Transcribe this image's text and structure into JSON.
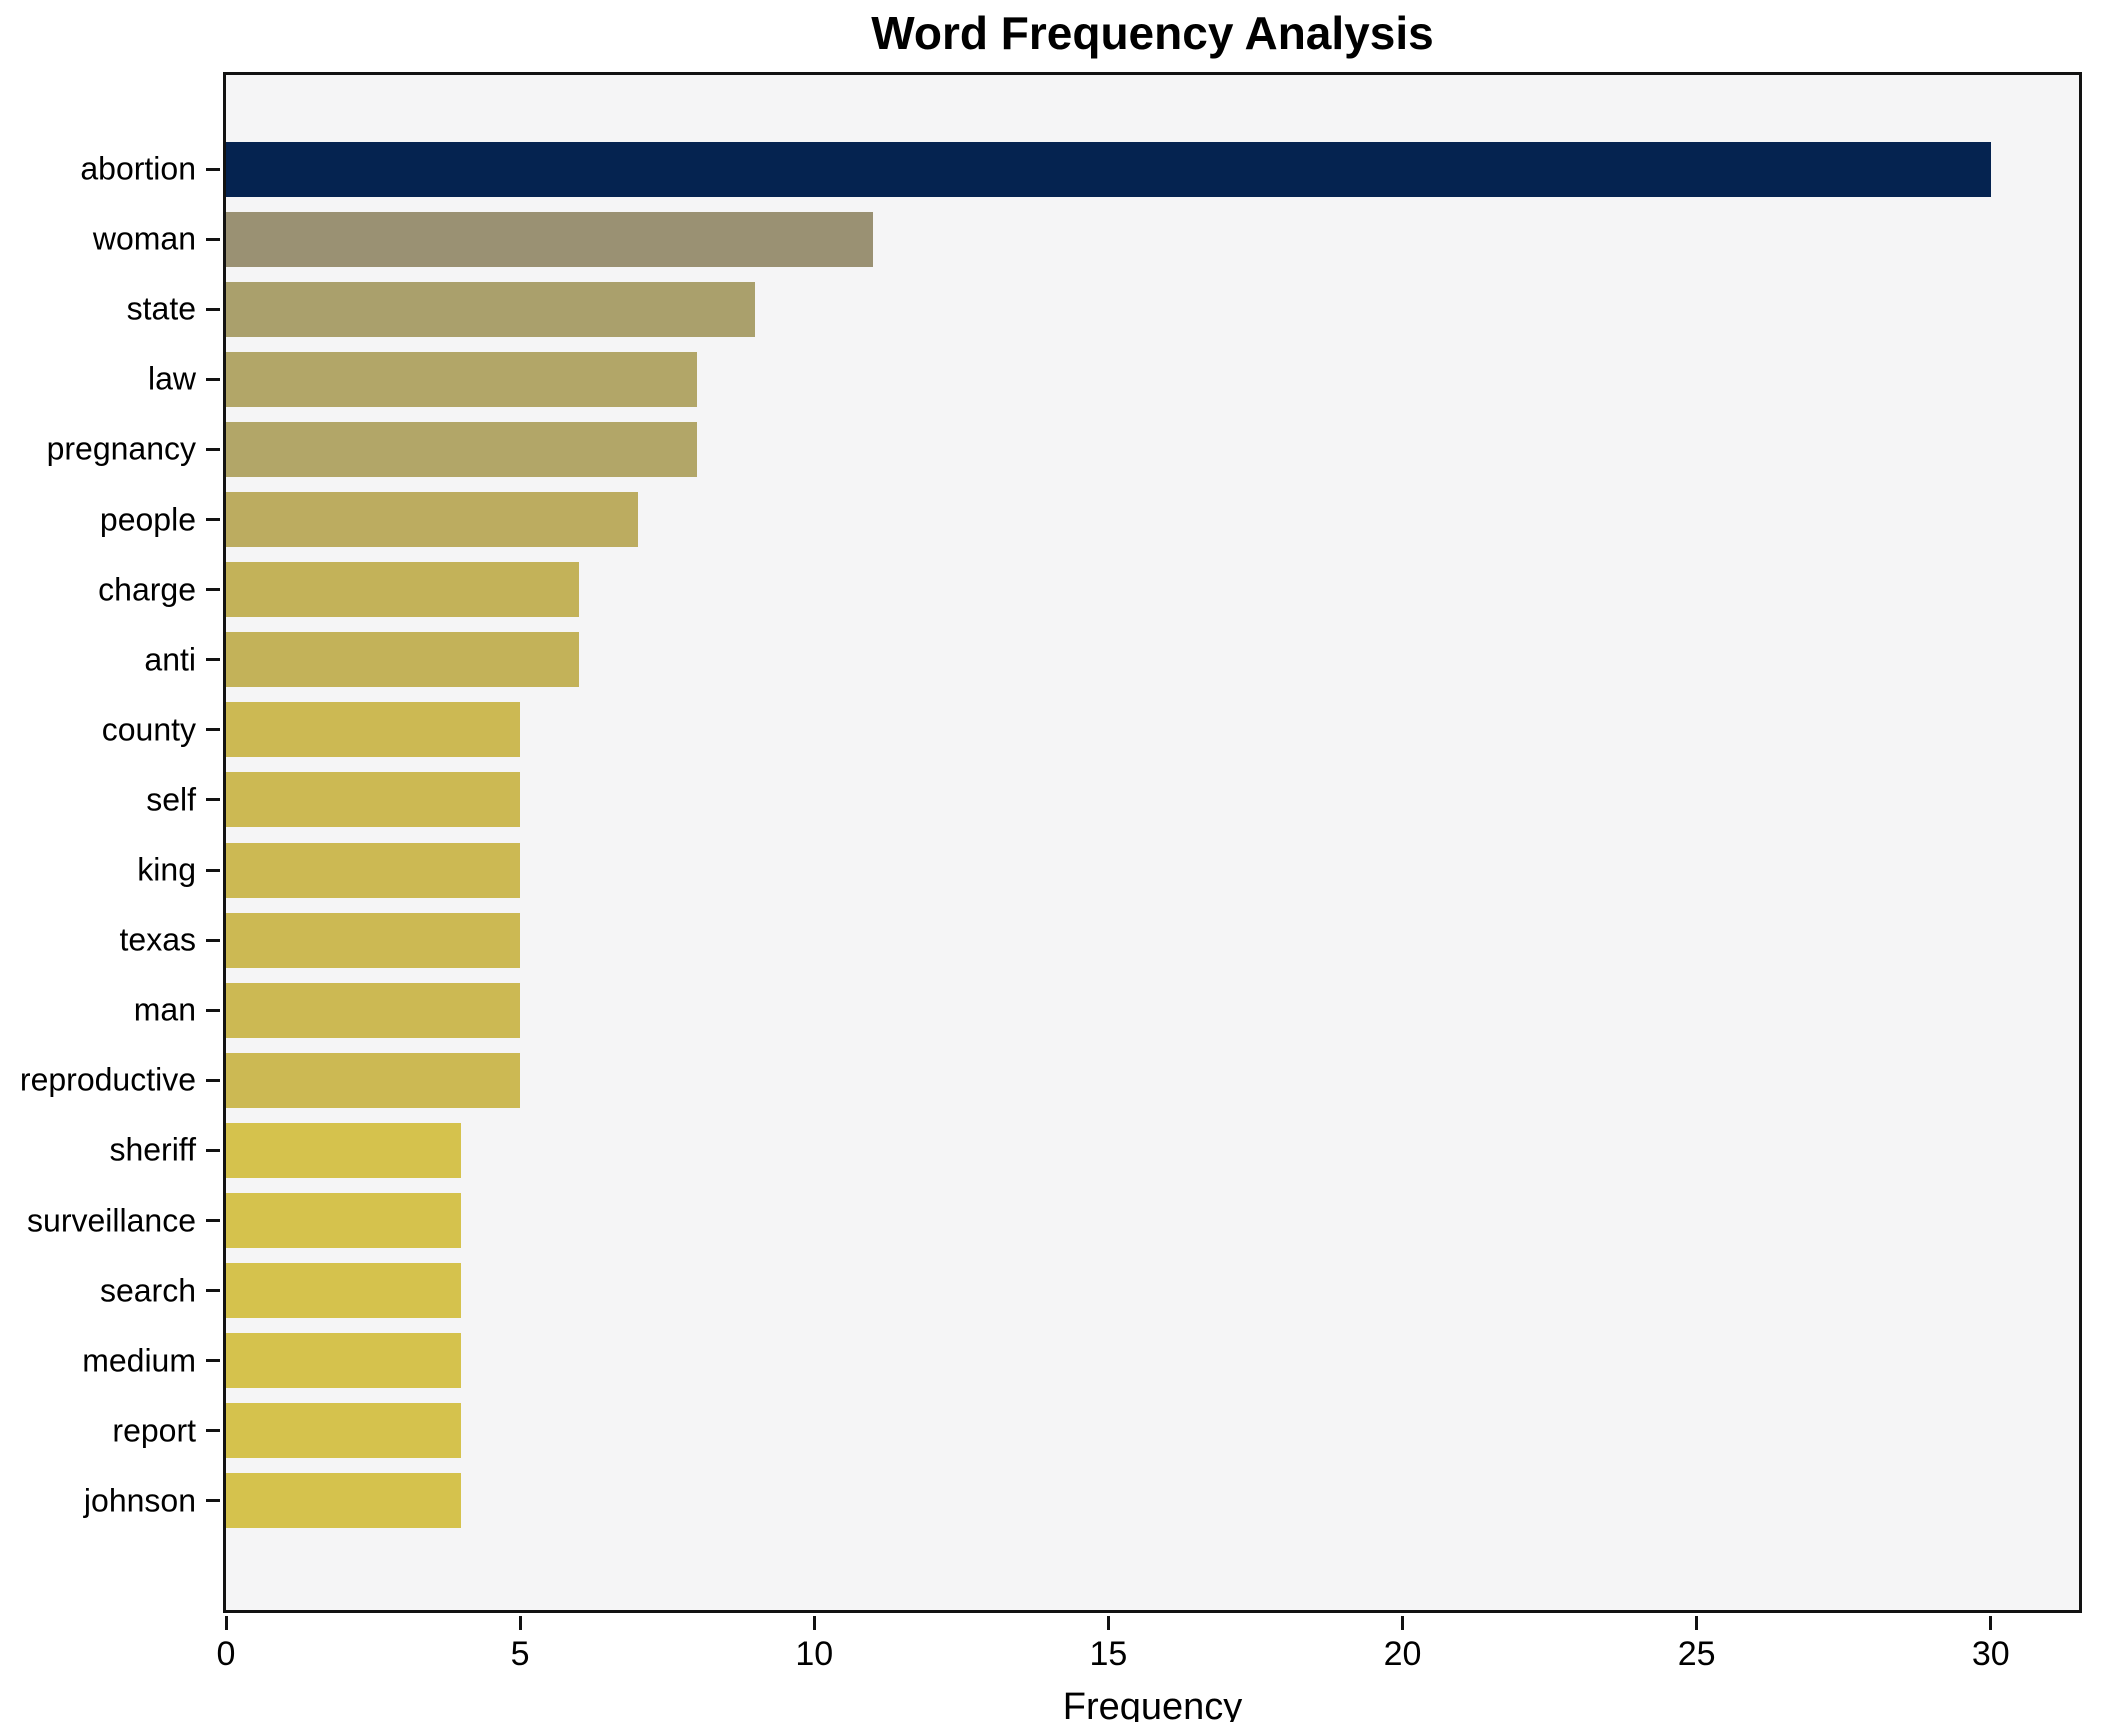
{
  "title": "Word Frequency Analysis",
  "xlabel": "Frequency",
  "colors": {
    "figure_background": "#ffffff",
    "plot_background": "#f5f5f6",
    "spine": "#121212",
    "max_bar": "#052350",
    "min_bar": "#d5c24d"
  },
  "chart_data": {
    "type": "bar",
    "orientation": "horizontal",
    "title": "Word Frequency Analysis",
    "xlabel": "Frequency",
    "ylabel": "",
    "grid": false,
    "legend": false,
    "xlim": [
      0,
      31.5
    ],
    "xticks": [
      0,
      5,
      10,
      15,
      20,
      25,
      30
    ],
    "categories": [
      "abortion",
      "woman",
      "state",
      "law",
      "pregnancy",
      "people",
      "charge",
      "anti",
      "county",
      "self",
      "king",
      "texas",
      "man",
      "reproductive",
      "sheriff",
      "surveillance",
      "search",
      "medium",
      "report",
      "johnson"
    ],
    "values": [
      30,
      11,
      9,
      8,
      8,
      7,
      6,
      6,
      5,
      5,
      5,
      5,
      5,
      5,
      4,
      4,
      4,
      4,
      4,
      4
    ],
    "bar_colors": [
      "#052350",
      "#9a9173",
      "#aaa06c",
      "#b2a668",
      "#b2a668",
      "#bcac60",
      "#c3b259",
      "#c3b259",
      "#ccb953",
      "#ccb953",
      "#ccb953",
      "#ccb953",
      "#ccb953",
      "#ccb953",
      "#d5c24d",
      "#d5c24d",
      "#d5c24d",
      "#d5c24d",
      "#d5c24d",
      "#d5c24d"
    ]
  }
}
